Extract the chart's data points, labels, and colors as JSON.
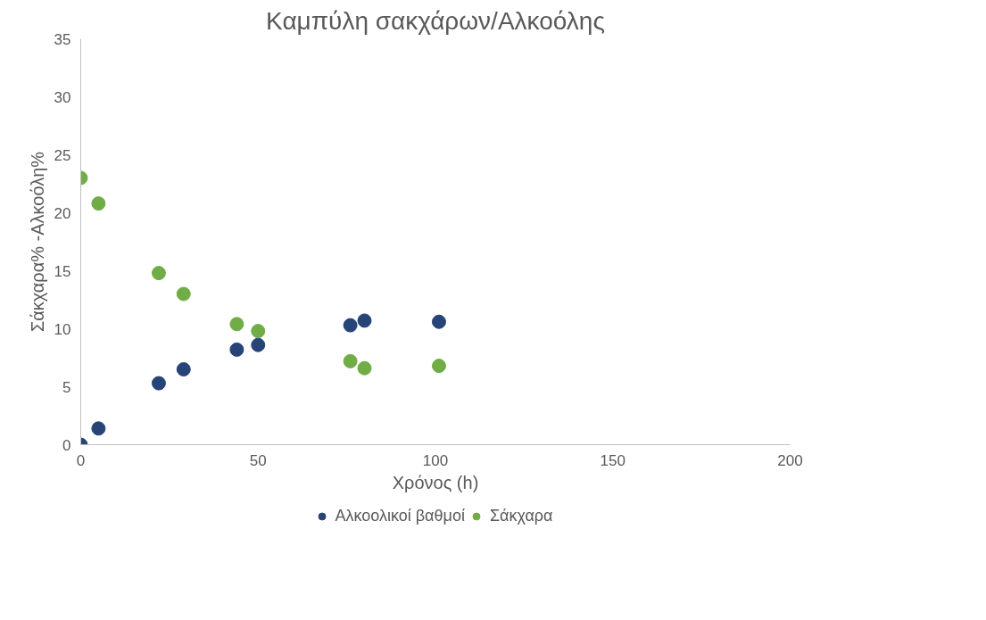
{
  "chart_data": {
    "type": "scatter",
    "title": "Καμπύλη σακχάρων/Αλκοόλης",
    "xlabel": "Χρόνος (h)",
    "ylabel": "Σάκχαρα% -Αλκοόλη%",
    "x": [
      0,
      5,
      22,
      29,
      44,
      50,
      76,
      80,
      101
    ],
    "series": [
      {
        "name": "Αλκοολικοί βαθμοί",
        "color": "#264478",
        "values": [
          0,
          1.4,
          5.3,
          6.5,
          8.2,
          8.6,
          10.3,
          10.7,
          10.6
        ]
      },
      {
        "name": "Σάκχαρα",
        "color": "#70ad47",
        "values": [
          23.0,
          20.8,
          14.8,
          13.0,
          10.4,
          9.8,
          7.2,
          6.6,
          6.8
        ]
      }
    ],
    "xlim": [
      0,
      200
    ],
    "xticks": [
      0,
      50,
      100,
      150,
      200
    ],
    "ylim": [
      0,
      35
    ],
    "yticks": [
      0,
      5,
      10,
      15,
      20,
      25,
      30,
      35
    ],
    "grid": false,
    "legend": "bottom",
    "marker": "circle"
  }
}
